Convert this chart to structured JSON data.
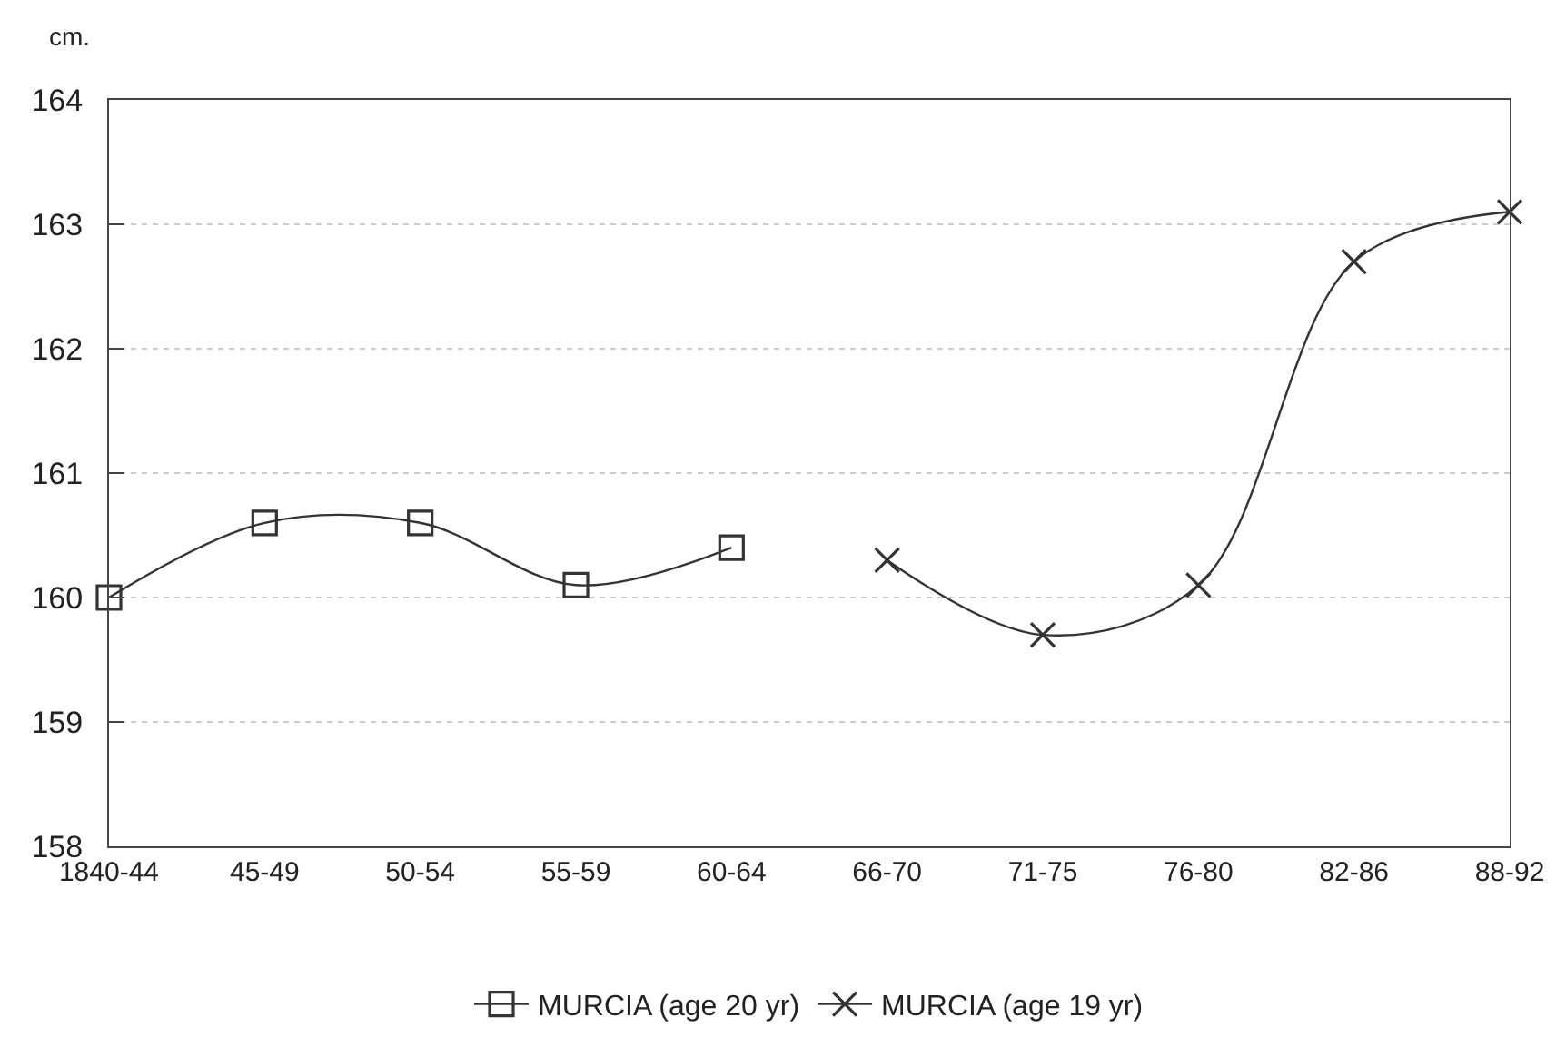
{
  "chart_data": {
    "type": "line",
    "ylabel": "cm.",
    "categories": [
      "1840-44",
      "45-49",
      "50-54",
      "55-59",
      "60-64",
      "66-70",
      "71-75",
      "76-80",
      "82-86",
      "88-92"
    ],
    "series": [
      {
        "name": "MURCIA (age 20 yr)",
        "color": "#333333",
        "marker": "square",
        "values": [
          160.0,
          160.6,
          160.6,
          160.1,
          160.4,
          null,
          null,
          null,
          null,
          null
        ]
      },
      {
        "name": "MURCIA (age 19 yr)",
        "color": "#333333",
        "marker": "cross",
        "values": [
          null,
          null,
          null,
          null,
          null,
          160.3,
          159.7,
          160.1,
          162.7,
          163.1
        ]
      }
    ],
    "ylim": [
      158,
      164
    ],
    "yticks": [
      158,
      159,
      160,
      161,
      162,
      163,
      164
    ],
    "grid": "y",
    "legend": "bottom",
    "line_style": "solid"
  }
}
